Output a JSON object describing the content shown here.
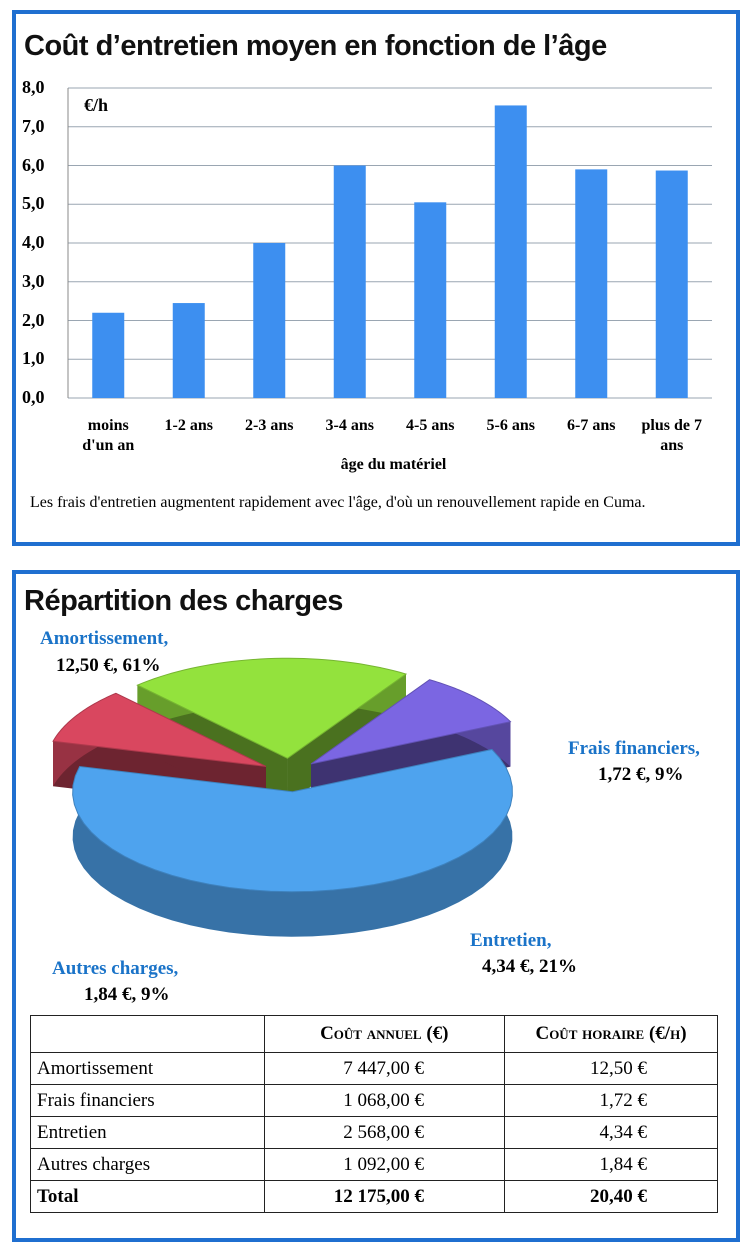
{
  "chart_data": [
    {
      "type": "bar",
      "title": "Coût d’entretien moyen en fonction de l’âge",
      "y_unit": "€/h",
      "x_label": "âge du matériel",
      "note": "Les frais d'entretien augmentent rapidement avec l'âge, d'où un renouvellement rapide en Cuma.",
      "categories": [
        "moins d'un an",
        "1-2 ans",
        "2-3 ans",
        "3-4 ans",
        "4-5 ans",
        "5-6 ans",
        "6-7 ans",
        "plus de 7 ans"
      ],
      "values": [
        2.2,
        2.45,
        4.0,
        6.0,
        5.05,
        7.55,
        5.9,
        5.87
      ],
      "color": "#3d8ff0",
      "ylim": [
        0,
        8
      ],
      "yticks": [
        {
          "value": 0,
          "label": "0,0"
        },
        {
          "value": 1,
          "label": "1,0"
        },
        {
          "value": 2,
          "label": "2,0"
        },
        {
          "value": 3,
          "label": "3,0"
        },
        {
          "value": 4,
          "label": "4,0"
        },
        {
          "value": 5,
          "label": "5,0"
        },
        {
          "value": 6,
          "label": "6,0"
        },
        {
          "value": 7,
          "label": "7,0"
        },
        {
          "value": 8,
          "label": "8,0"
        }
      ],
      "grid": true
    },
    {
      "type": "pie",
      "title": "Répartition des charges",
      "categories": [
        "Amortissement,",
        "Frais financiers,",
        "Entretien,",
        "Autres charges,"
      ],
      "values": [
        61,
        9,
        21,
        9
      ],
      "value_labels": [
        "12,50 €, 61%",
        "1,72 €, 9%",
        "4,34 €, 21%",
        "1,84 €, 9%"
      ],
      "colors": [
        "#4ea3ee",
        "#d9475f",
        "#93e23d",
        "#7b66e2"
      ]
    }
  ],
  "table": {
    "headers": [
      "Coût annuel (€)",
      "Coût horaire (€/h)"
    ],
    "rows": [
      [
        "Amortissement",
        "7 447,00 €",
        "12,50 €"
      ],
      [
        "Frais financiers",
        "1 068,00 €",
        "1,72 €"
      ],
      [
        "Entretien",
        "2 568,00 €",
        "4,34 €"
      ],
      [
        "Autres charges",
        "1 092,00 €",
        "1,84 €"
      ]
    ],
    "total": [
      "Total",
      "12 175,00 €",
      "20,40 €"
    ]
  }
}
